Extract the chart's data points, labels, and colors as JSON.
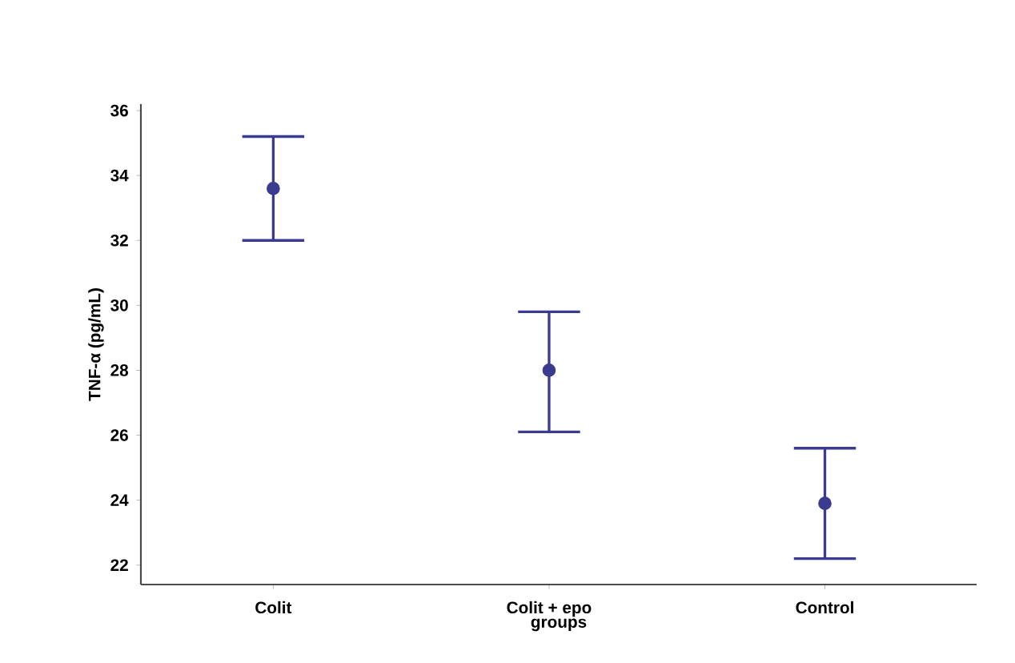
{
  "chart_data": {
    "type": "scatter",
    "xlabel": "groups",
    "ylabel": "TNF-α (pg/mL)",
    "categories": [
      "Colit",
      "Colit + epo",
      "Control"
    ],
    "values": [
      33.6,
      28.0,
      23.9
    ],
    "errors": [
      [
        32.0,
        35.2
      ],
      [
        26.1,
        29.8
      ],
      [
        22.2,
        25.6
      ]
    ],
    "color": "#3b3b8f",
    "marker": "circle",
    "ylim": [
      21.4,
      36.2
    ],
    "yticks": [
      22,
      24,
      26,
      28,
      30,
      32,
      34,
      36
    ]
  }
}
